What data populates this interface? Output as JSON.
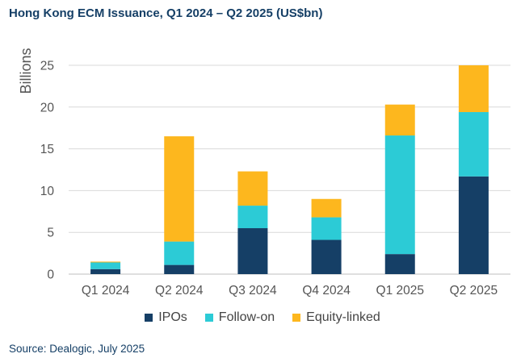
{
  "title": "Hong Kong ECM Issuance, Q1 2024 – Q2 2025 (US$bn)",
  "source": "Source: Dealogic, July 2025",
  "chart_data": {
    "type": "bar",
    "stacked": true,
    "categories": [
      "Q1 2024",
      "Q2 2024",
      "Q3 2024",
      "Q4 2024",
      "Q1 2025",
      "Q2 2025"
    ],
    "series": [
      {
        "name": "IPOs",
        "color": "#153f66",
        "values": [
          0.6,
          1.1,
          5.5,
          4.1,
          2.4,
          11.7
        ]
      },
      {
        "name": "Follow-on",
        "color": "#2ccbd6",
        "values": [
          0.8,
          2.8,
          2.7,
          2.7,
          14.2,
          7.7
        ]
      },
      {
        "name": "Equity-linked",
        "color": "#fdb71e",
        "values": [
          0.1,
          12.6,
          4.1,
          2.2,
          3.7,
          5.6
        ]
      }
    ],
    "ylabel": "Billions",
    "ylim": [
      0,
      25
    ],
    "yticks": [
      0,
      5,
      10,
      15,
      20,
      25
    ],
    "grid": true,
    "legend_position": "bottom"
  }
}
